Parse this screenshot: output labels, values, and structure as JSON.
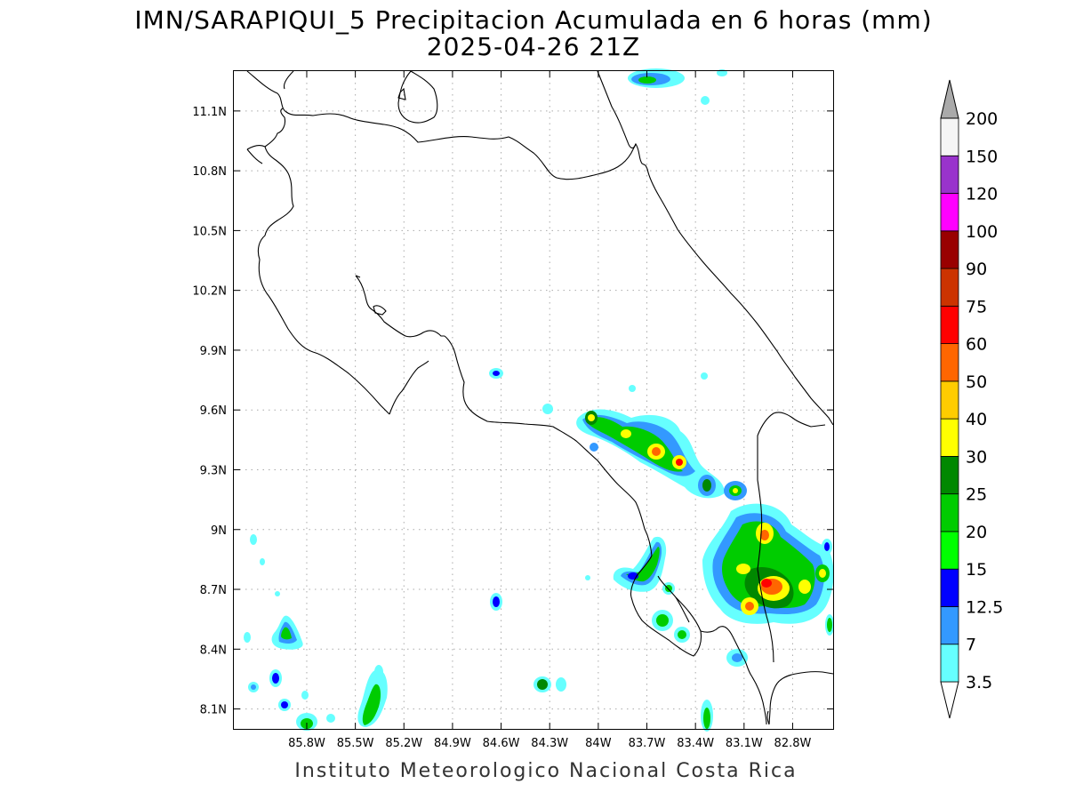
{
  "title": {
    "line1": "IMN/SARAPIQUI_5 Precipitacion Acumulada en 6 horas (mm)",
    "line2": "2025-04-26 21Z"
  },
  "map": {
    "lon_range": [
      -86.25,
      -82.55
    ],
    "lat_range": [
      8.0,
      11.3
    ],
    "lon_ticks": [
      {
        "value": -85.8,
        "label": "85.8W"
      },
      {
        "value": -85.5,
        "label": "85.5W"
      },
      {
        "value": -85.2,
        "label": "85.2W"
      },
      {
        "value": -84.9,
        "label": "84.9W"
      },
      {
        "value": -84.6,
        "label": "84.6W"
      },
      {
        "value": -84.3,
        "label": "84.3W"
      },
      {
        "value": -84.0,
        "label": "84W"
      },
      {
        "value": -83.7,
        "label": "83.7W"
      },
      {
        "value": -83.4,
        "label": "83.4W"
      },
      {
        "value": -83.1,
        "label": "83.1W"
      },
      {
        "value": -82.8,
        "label": "82.8W"
      }
    ],
    "lat_ticks": [
      {
        "value": 8.1,
        "label": "8.1N"
      },
      {
        "value": 8.4,
        "label": "8.4N"
      },
      {
        "value": 8.7,
        "label": "8.7N"
      },
      {
        "value": 9.0,
        "label": "9N"
      },
      {
        "value": 9.3,
        "label": "9.3N"
      },
      {
        "value": 9.6,
        "label": "9.6N"
      },
      {
        "value": 9.9,
        "label": "9.9N"
      },
      {
        "value": 10.2,
        "label": "10.2N"
      },
      {
        "value": 10.5,
        "label": "10.5N"
      },
      {
        "value": 10.8,
        "label": "10.8N"
      },
      {
        "value": 11.1,
        "label": "11.1N"
      }
    ],
    "grid": true
  },
  "colorbar": {
    "levels": [
      {
        "label": "3.5",
        "color": "#66ffff"
      },
      {
        "label": "7",
        "color": "#3399ff"
      },
      {
        "label": "12.5",
        "color": "#0000ff"
      },
      {
        "label": "15",
        "color": "#00ff00"
      },
      {
        "label": "20",
        "color": "#00cc00"
      },
      {
        "label": "25",
        "color": "#008800"
      },
      {
        "label": "30",
        "color": "#ffff00"
      },
      {
        "label": "40",
        "color": "#ffcc00"
      },
      {
        "label": "50",
        "color": "#ff6600"
      },
      {
        "label": "60",
        "color": "#ff0000"
      },
      {
        "label": "75",
        "color": "#cc3300"
      },
      {
        "label": "90",
        "color": "#990000"
      },
      {
        "label": "100",
        "color": "#ff00ff"
      },
      {
        "label": "120",
        "color": "#9933cc"
      },
      {
        "label": "150",
        "color": "#f5f5f5"
      },
      {
        "label": "200",
        "color": "#aaaaaa"
      }
    ]
  },
  "credit": "Instituto Meteorologico Nacional Costa Rica"
}
